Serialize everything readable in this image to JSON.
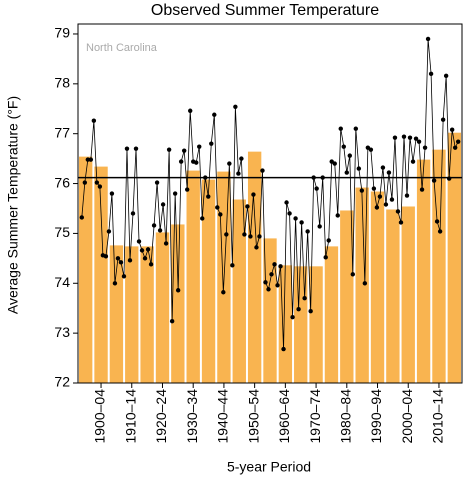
{
  "chart_data": {
    "type": "bar",
    "title": "Observed Summer Temperature",
    "ylabel": "Average Summer Temperature (°F)",
    "xlabel": "5-year Period",
    "annotation": "North Carolina",
    "categories": [
      null,
      "1900–04",
      null,
      "1910–14",
      null,
      "1920–24",
      null,
      "1930–34",
      null,
      "1940–44",
      null,
      "1950–54",
      null,
      "1960–64",
      null,
      "1970–74",
      null,
      "1980–84",
      null,
      "1990–94",
      null,
      "2000–04",
      null,
      "2010–14",
      null
    ],
    "values": [
      76.54,
      76.34,
      74.76,
      74.74,
      74.74,
      75.02,
      75.18,
      76.26,
      76.08,
      76.24,
      75.68,
      76.64,
      74.9,
      74.36,
      74.34,
      74.34,
      74.74,
      75.46,
      75.92,
      75.84,
      75.48,
      75.54,
      76.48,
      76.68,
      77.02
    ],
    "color": "#f9b450",
    "points": [
      75.32,
      76.02,
      76.48,
      76.48,
      77.26,
      76.02,
      75.94,
      74.56,
      74.54,
      75.04,
      75.8,
      74.0,
      74.5,
      74.42,
      74.14,
      76.7,
      74.46,
      75.4,
      76.7,
      74.84,
      74.66,
      74.5,
      74.68,
      74.38,
      75.16,
      76.02,
      75.06,
      75.58,
      74.8,
      76.68,
      73.24,
      75.8,
      73.86,
      76.44,
      76.66,
      75.88,
      77.46,
      76.44,
      76.42,
      76.74,
      75.3,
      76.12,
      75.74,
      76.8,
      77.38,
      75.52,
      75.38,
      73.82,
      74.98,
      76.4,
      74.36,
      77.54,
      76.2,
      76.5,
      74.98,
      75.54,
      74.94,
      75.78,
      74.72,
      74.94,
      76.26,
      74.02,
      73.88,
      74.18,
      74.38,
      73.96,
      74.34,
      72.68,
      75.62,
      75.4,
      73.32,
      75.3,
      73.48,
      75.22,
      73.7,
      75.04,
      73.44,
      76.12,
      75.9,
      75.14,
      76.12,
      74.52,
      74.86,
      76.44,
      76.4,
      75.36,
      77.1,
      76.74,
      76.22,
      76.56,
      74.18,
      77.1,
      76.3,
      75.86,
      74.0,
      76.72,
      76.68,
      75.9,
      75.52,
      75.74,
      76.32,
      75.58,
      76.22,
      75.68,
      76.92,
      75.44,
      75.22,
      76.94,
      75.76,
      76.92,
      76.44,
      76.9,
      76.84,
      75.88,
      76.72,
      78.9,
      78.2,
      76.06,
      75.24,
      75.04,
      77.28,
      78.16,
      76.1,
      77.08,
      76.72,
      76.84
    ],
    "points_color": "#000000",
    "reference_line": 76.12,
    "ylim": [
      72,
      79.2
    ],
    "yticks": [
      72,
      73,
      74,
      75,
      76,
      77,
      78,
      79
    ]
  }
}
